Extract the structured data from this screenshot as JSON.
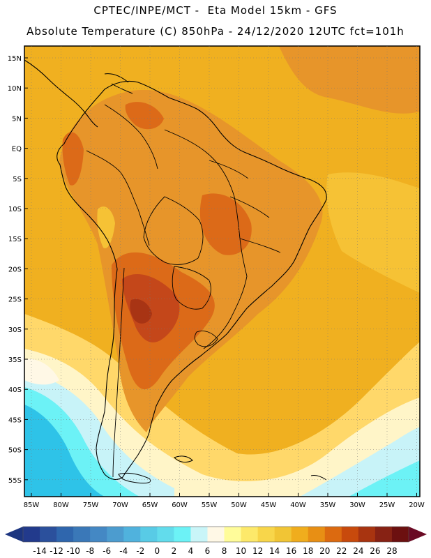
{
  "header": {
    "line1": "CPTEC/INPE/MCT -  Eta Model 15km - GFS",
    "line2": "Absolute Temperature (C) 850hPa - 24/12/2020 12UTC fct=101h"
  },
  "map": {
    "lat_labels": [
      "15N",
      "10N",
      "5N",
      "EQ",
      "5S",
      "10S",
      "15S",
      "20S",
      "25S",
      "30S",
      "35S",
      "40S",
      "45S",
      "50S",
      "55S"
    ],
    "lon_labels": [
      "85W",
      "80W",
      "75W",
      "70W",
      "65W",
      "60W",
      "55W",
      "50W",
      "45W",
      "40W",
      "35W",
      "30W",
      "25W",
      "20W"
    ],
    "colors": {
      "background": "#f0b020",
      "ocean_north": "#f3b41d",
      "warm": "#e7952a",
      "hot": "#dc6a18",
      "hotter": "#c4471a",
      "extreme": "#a83414",
      "mild": "#f6c235",
      "cool": "#ffd86a",
      "pale": "#fff5c8",
      "cream": "#fff8e6",
      "light_cyan": "#c8f3f8",
      "cyan": "#6cf2f6",
      "aqua": "#2ec3e8",
      "blue": "#48b9e6",
      "coast": "#000000"
    }
  },
  "colorbar": {
    "labels": [
      "-14",
      "-12",
      "-10",
      "-8",
      "-6",
      "-4",
      "-2",
      "0",
      "2",
      "4",
      "6",
      "8",
      "10",
      "12",
      "14",
      "16",
      "18",
      "20",
      "22",
      "24",
      "26",
      "28"
    ],
    "colors": [
      "#223a8c",
      "#2b509c",
      "#2f66ad",
      "#3a78b8",
      "#4488c4",
      "#4c9ccf",
      "#50b2dd",
      "#58cbe6",
      "#62dcec",
      "#6cf2f6",
      "#c9f5f8",
      "#fff8e6",
      "#fffc9a",
      "#fde96a",
      "#f8d64a",
      "#f1c535",
      "#f0ad1d",
      "#e88f14",
      "#dc6a10",
      "#c84a0c",
      "#a83410",
      "#872214",
      "#6c1010"
    ],
    "left_arrow_color": "#1c3580",
    "right_arrow_color": "#6a0a24"
  }
}
